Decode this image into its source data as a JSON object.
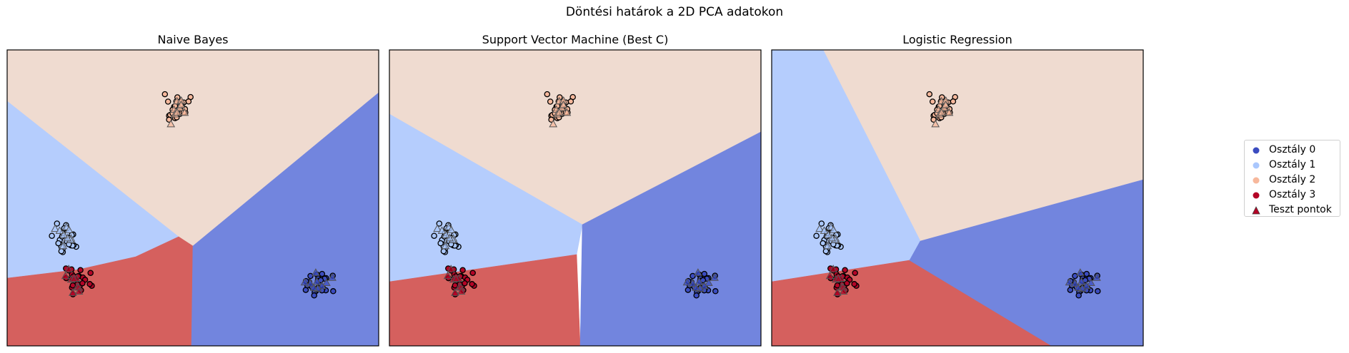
{
  "figure": {
    "suptitle": "Döntési határok a 2D PCA adatokon"
  },
  "colors": {
    "class0_region": "#7285de",
    "class1_region": "#b5cdfd",
    "class2_region": "#efdbd0",
    "class3_region": "#d5605e",
    "class0": "#3b4cc0",
    "class1": "#aac7fd",
    "class2": "#f7b89c",
    "class3": "#b40426"
  },
  "legend": {
    "placement": "center-right",
    "entries": [
      {
        "label": "Osztály 0",
        "marker": "circle",
        "color": "#3b4cc0"
      },
      {
        "label": "Osztály 1",
        "marker": "circle",
        "color": "#aac7fd"
      },
      {
        "label": "Osztály 2",
        "marker": "circle",
        "color": "#f7b89c"
      },
      {
        "label": "Osztály 3",
        "marker": "circle",
        "color": "#b40426"
      },
      {
        "label": "Teszt pontok",
        "marker": "triangle",
        "color": "#b40426"
      }
    ]
  },
  "chart_data": [
    {
      "type": "scatter",
      "title": "Naive Bayes",
      "xlim": [
        -4,
        4
      ],
      "ylim": [
        -4,
        4
      ],
      "grid": false,
      "ticks": false,
      "clusters": [
        {
          "class": 0,
          "center": [
            2.7,
            -2.3
          ]
        },
        {
          "class": 1,
          "center": [
            -2.7,
            -1.1
          ]
        },
        {
          "class": 2,
          "center": [
            -0.3,
            2.4
          ]
        },
        {
          "class": 3,
          "center": [
            -2.5,
            -2.2
          ]
        }
      ]
    },
    {
      "type": "scatter",
      "title": "Support Vector Machine (Best C)",
      "xlim": [
        -4,
        4
      ],
      "ylim": [
        -4,
        4
      ],
      "grid": false,
      "ticks": false,
      "clusters": [
        {
          "class": 0,
          "center": [
            2.7,
            -2.3
          ]
        },
        {
          "class": 1,
          "center": [
            -2.7,
            -1.1
          ]
        },
        {
          "class": 2,
          "center": [
            -0.3,
            2.4
          ]
        },
        {
          "class": 3,
          "center": [
            -2.5,
            -2.2
          ]
        }
      ]
    },
    {
      "type": "scatter",
      "title": "Logistic Regression",
      "xlim": [
        -4,
        4
      ],
      "ylim": [
        -4,
        4
      ],
      "grid": false,
      "ticks": false,
      "clusters": [
        {
          "class": 0,
          "center": [
            2.7,
            -2.3
          ]
        },
        {
          "class": 1,
          "center": [
            -2.7,
            -1.1
          ]
        },
        {
          "class": 2,
          "center": [
            -0.3,
            2.4
          ]
        },
        {
          "class": 3,
          "center": [
            -2.5,
            -2.2
          ]
        }
      ]
    }
  ]
}
